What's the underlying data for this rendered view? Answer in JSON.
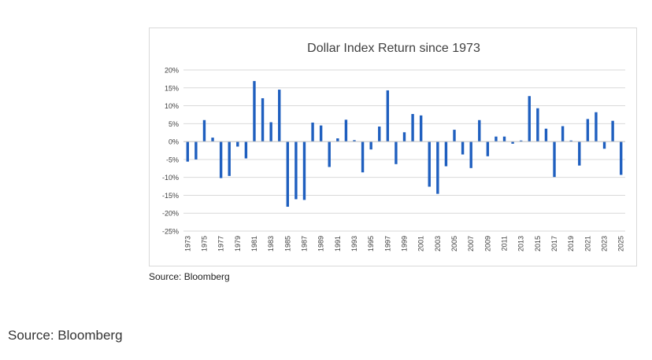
{
  "chart_data": {
    "type": "bar",
    "title": "Dollar Index Return since 1973",
    "xlabel": "",
    "ylabel": "",
    "ylim": [
      -25,
      20
    ],
    "y_ticks": [
      20,
      15,
      10,
      5,
      0,
      -5,
      -10,
      -15,
      -20,
      -25
    ],
    "y_tick_labels": [
      "20%",
      "15%",
      "10%",
      "5%",
      "0%",
      "-5%",
      "-10%",
      "-15%",
      "-20%",
      "-25%"
    ],
    "grid": true,
    "legend": "none",
    "bar_color": "#1f5fbf",
    "categories": [
      "1973",
      "1974",
      "1975",
      "1976",
      "1977",
      "1978",
      "1979",
      "1980",
      "1981",
      "1982",
      "1983",
      "1984",
      "1985",
      "1986",
      "1987",
      "1988",
      "1989",
      "1990",
      "1991",
      "1992",
      "1993",
      "1994",
      "1995",
      "1996",
      "1997",
      "1998",
      "1999",
      "2000",
      "2001",
      "2002",
      "2003",
      "2004",
      "2005",
      "2006",
      "2007",
      "2008",
      "2009",
      "2010",
      "2011",
      "2012",
      "2013",
      "2014",
      "2015",
      "2016",
      "2017",
      "2018",
      "2019",
      "2020",
      "2021",
      "2022",
      "2023",
      "2024",
      "2025"
    ],
    "x_tick_labels": [
      "1973",
      "1975",
      "1977",
      "1979",
      "1981",
      "1983",
      "1985",
      "1987",
      "1989",
      "1991",
      "1993",
      "1995",
      "1997",
      "1999",
      "2001",
      "2003",
      "2005",
      "2007",
      "2009",
      "2011",
      "2013",
      "2015",
      "2017",
      "2019",
      "2021",
      "2023",
      "2025"
    ],
    "values": [
      -5.6,
      -5.0,
      6.0,
      1.1,
      -10.2,
      -9.6,
      -1.4,
      -4.7,
      16.9,
      12.1,
      5.4,
      14.5,
      -18.2,
      -16.1,
      -16.3,
      5.3,
      4.5,
      -7.1,
      0.9,
      6.1,
      0.4,
      -8.6,
      -2.2,
      4.2,
      14.3,
      -6.3,
      2.6,
      7.7,
      7.3,
      -12.6,
      -14.6,
      -6.9,
      3.3,
      -3.6,
      -7.4,
      6.0,
      -4.1,
      1.4,
      1.4,
      -0.6,
      0.3,
      12.7,
      9.3,
      3.6,
      -9.9,
      4.3,
      0.3,
      -6.7,
      6.3,
      8.2,
      -2.0,
      5.8,
      -9.3
    ]
  },
  "sources": {
    "chart_source": "Source: Bloomberg",
    "page_source": "Source: Bloomberg"
  }
}
